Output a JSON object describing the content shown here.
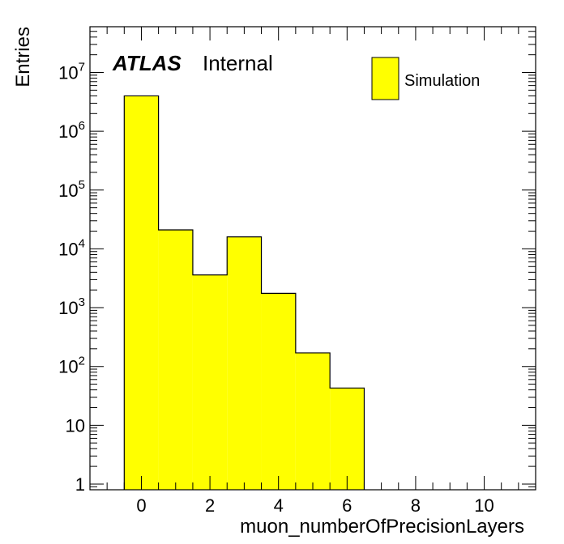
{
  "chart_data": {
    "type": "histogram",
    "title": "",
    "xlabel": "muon_numberOfPrecisionLayers",
    "ylabel": "Entries",
    "log_y": true,
    "xlim": [
      -1.5,
      11.5
    ],
    "ylim": [
      0.8,
      60000000
    ],
    "x_ticks": [
      "0",
      "2",
      "4",
      "6",
      "8",
      "10"
    ],
    "y_ticks": [
      {
        "value": 1,
        "base": "1",
        "exp": ""
      },
      {
        "value": 10,
        "base": "10",
        "exp": ""
      },
      {
        "value": 100,
        "base": "10",
        "exp": "2"
      },
      {
        "value": 1000,
        "base": "10",
        "exp": "3"
      },
      {
        "value": 10000,
        "base": "10",
        "exp": "4"
      },
      {
        "value": 100000,
        "base": "10",
        "exp": "5"
      },
      {
        "value": 1000000,
        "base": "10",
        "exp": "6"
      },
      {
        "value": 10000000,
        "base": "10",
        "exp": "7"
      }
    ],
    "bin_edges": [
      -0.5,
      0.5,
      1.5,
      2.5,
      3.5,
      4.5,
      5.5,
      6.5
    ],
    "series": [
      {
        "name": "Simulation",
        "color": "#ffff00",
        "values": [
          4000000,
          21000,
          3600,
          16000,
          1750,
          170,
          43
        ]
      }
    ],
    "legend_position": "top-right",
    "atlas_label": {
      "bold": "ATLAS",
      "text": "Internal"
    }
  }
}
